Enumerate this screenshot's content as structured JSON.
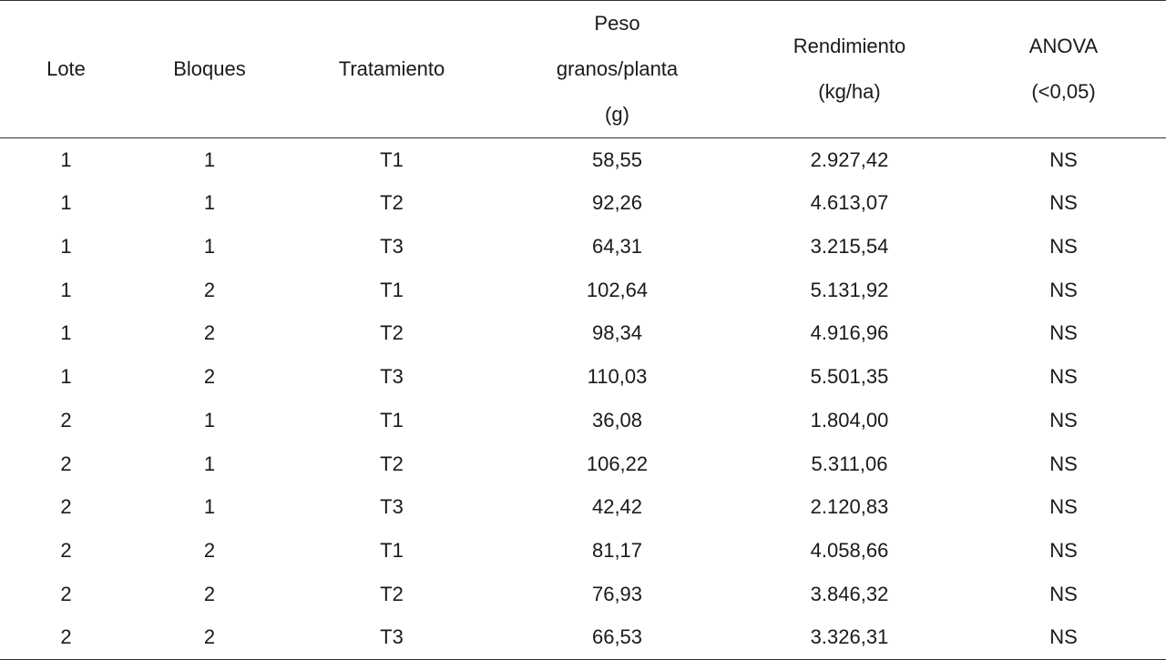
{
  "table": {
    "headers": {
      "lote": [
        "Lote"
      ],
      "bloques": [
        "Bloques"
      ],
      "tratamiento": [
        "Tratamiento"
      ],
      "peso": [
        "Peso",
        "granos/planta",
        "(g)"
      ],
      "rendimiento": [
        "Rendimiento",
        "(kg/ha)"
      ],
      "anova": [
        "ANOVA",
        "(<0,05)"
      ]
    },
    "rows": [
      [
        "1",
        "1",
        "T1",
        "58,55",
        "2.927,42",
        "NS"
      ],
      [
        "1",
        "1",
        "T2",
        "92,26",
        "4.613,07",
        "NS"
      ],
      [
        "1",
        "1",
        "T3",
        "64,31",
        "3.215,54",
        "NS"
      ],
      [
        "1",
        "2",
        "T1",
        "102,64",
        "5.131,92",
        "NS"
      ],
      [
        "1",
        "2",
        "T2",
        "98,34",
        "4.916,96",
        "NS"
      ],
      [
        "1",
        "2",
        "T3",
        "110,03",
        "5.501,35",
        "NS"
      ],
      [
        "2",
        "1",
        "T1",
        "36,08",
        "1.804,00",
        "NS"
      ],
      [
        "2",
        "1",
        "T2",
        "106,22",
        "5.311,06",
        "NS"
      ],
      [
        "2",
        "1",
        "T3",
        "42,42",
        "2.120,83",
        "NS"
      ],
      [
        "2",
        "2",
        "T1",
        "81,17",
        "4.058,66",
        "NS"
      ],
      [
        "2",
        "2",
        "T2",
        "76,93",
        "3.846,32",
        "NS"
      ],
      [
        "2",
        "2",
        "T3",
        "66,53",
        "3.326,31",
        "NS"
      ]
    ]
  }
}
